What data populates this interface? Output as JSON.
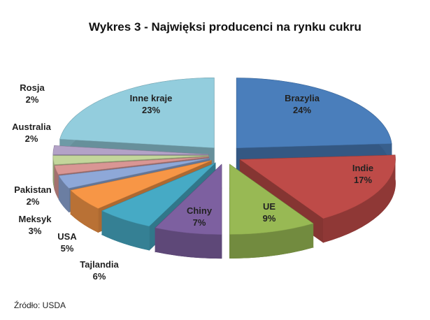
{
  "chart_data": {
    "type": "pie3d",
    "title": "Wykres 3 - Najwięksi producenci na rynku cukru",
    "source": "Źródło: USDA",
    "categories": [
      "Brazylia",
      "Indie",
      "UE",
      "Chiny",
      "Tajlandia",
      "USA",
      "Meksyk",
      "Pakistan",
      "Australia",
      "Rosja",
      "Inne kraje"
    ],
    "values": [
      24,
      17,
      9,
      7,
      6,
      5,
      3,
      2,
      2,
      2,
      23
    ],
    "value_labels": [
      "24%",
      "17%",
      "9%",
      "7%",
      "6%",
      "5%",
      "3%",
      "2%",
      "2%",
      "2%",
      "23%"
    ],
    "colors": [
      "#4a7ebb",
      "#be4b48",
      "#98b954",
      "#7d60a0",
      "#46aac5",
      "#f79646",
      "#8ea8d8",
      "#d99694",
      "#c3d69b",
      "#b3a2c7",
      "#93cddd"
    ]
  }
}
